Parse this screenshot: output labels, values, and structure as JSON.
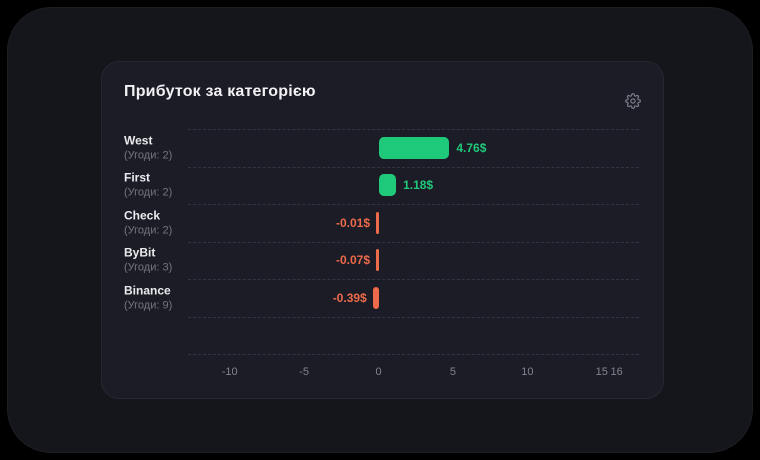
{
  "card": {
    "title": "Прибуток за категорією"
  },
  "icons": {
    "settings": "gear-icon"
  },
  "chart_data": {
    "type": "bar",
    "orientation": "horizontal",
    "title": "Прибуток за категорією",
    "categories": [
      "West",
      "First",
      "Check",
      "ByBit",
      "Binance"
    ],
    "sub_labels": [
      "(Угоди: 2)",
      "(Угоди: 2)",
      "(Угоди: 2)",
      "(Угоди: 3)",
      "(Угоди: 9)"
    ],
    "deals": [
      2,
      2,
      2,
      3,
      9
    ],
    "values": [
      4.76,
      1.18,
      -0.01,
      -0.07,
      -0.39
    ],
    "value_labels": [
      "4.76$",
      "1.18$",
      "-0.01$",
      "-0.07$",
      "-0.39$"
    ],
    "x_ticks": [
      "-10",
      "-5",
      "0",
      "5",
      "10",
      "15",
      "16"
    ],
    "x_tick_values": [
      -10,
      -5,
      0,
      5,
      10,
      15,
      16
    ],
    "x_range": [
      -12.8,
      17.5
    ],
    "xlabel": "",
    "ylabel": "",
    "grid": "dashed-horizontal",
    "empty_trailing_rows": 1,
    "colors": {
      "positive": "#1fc97a",
      "negative": "#ed6a4a",
      "grid_line": "#343440",
      "axis_text": "#83838e",
      "category_text": "#eaeaee",
      "sub_text": "#75757f",
      "card_bg": "#1c1c26",
      "window_bg": "#15151c"
    }
  }
}
